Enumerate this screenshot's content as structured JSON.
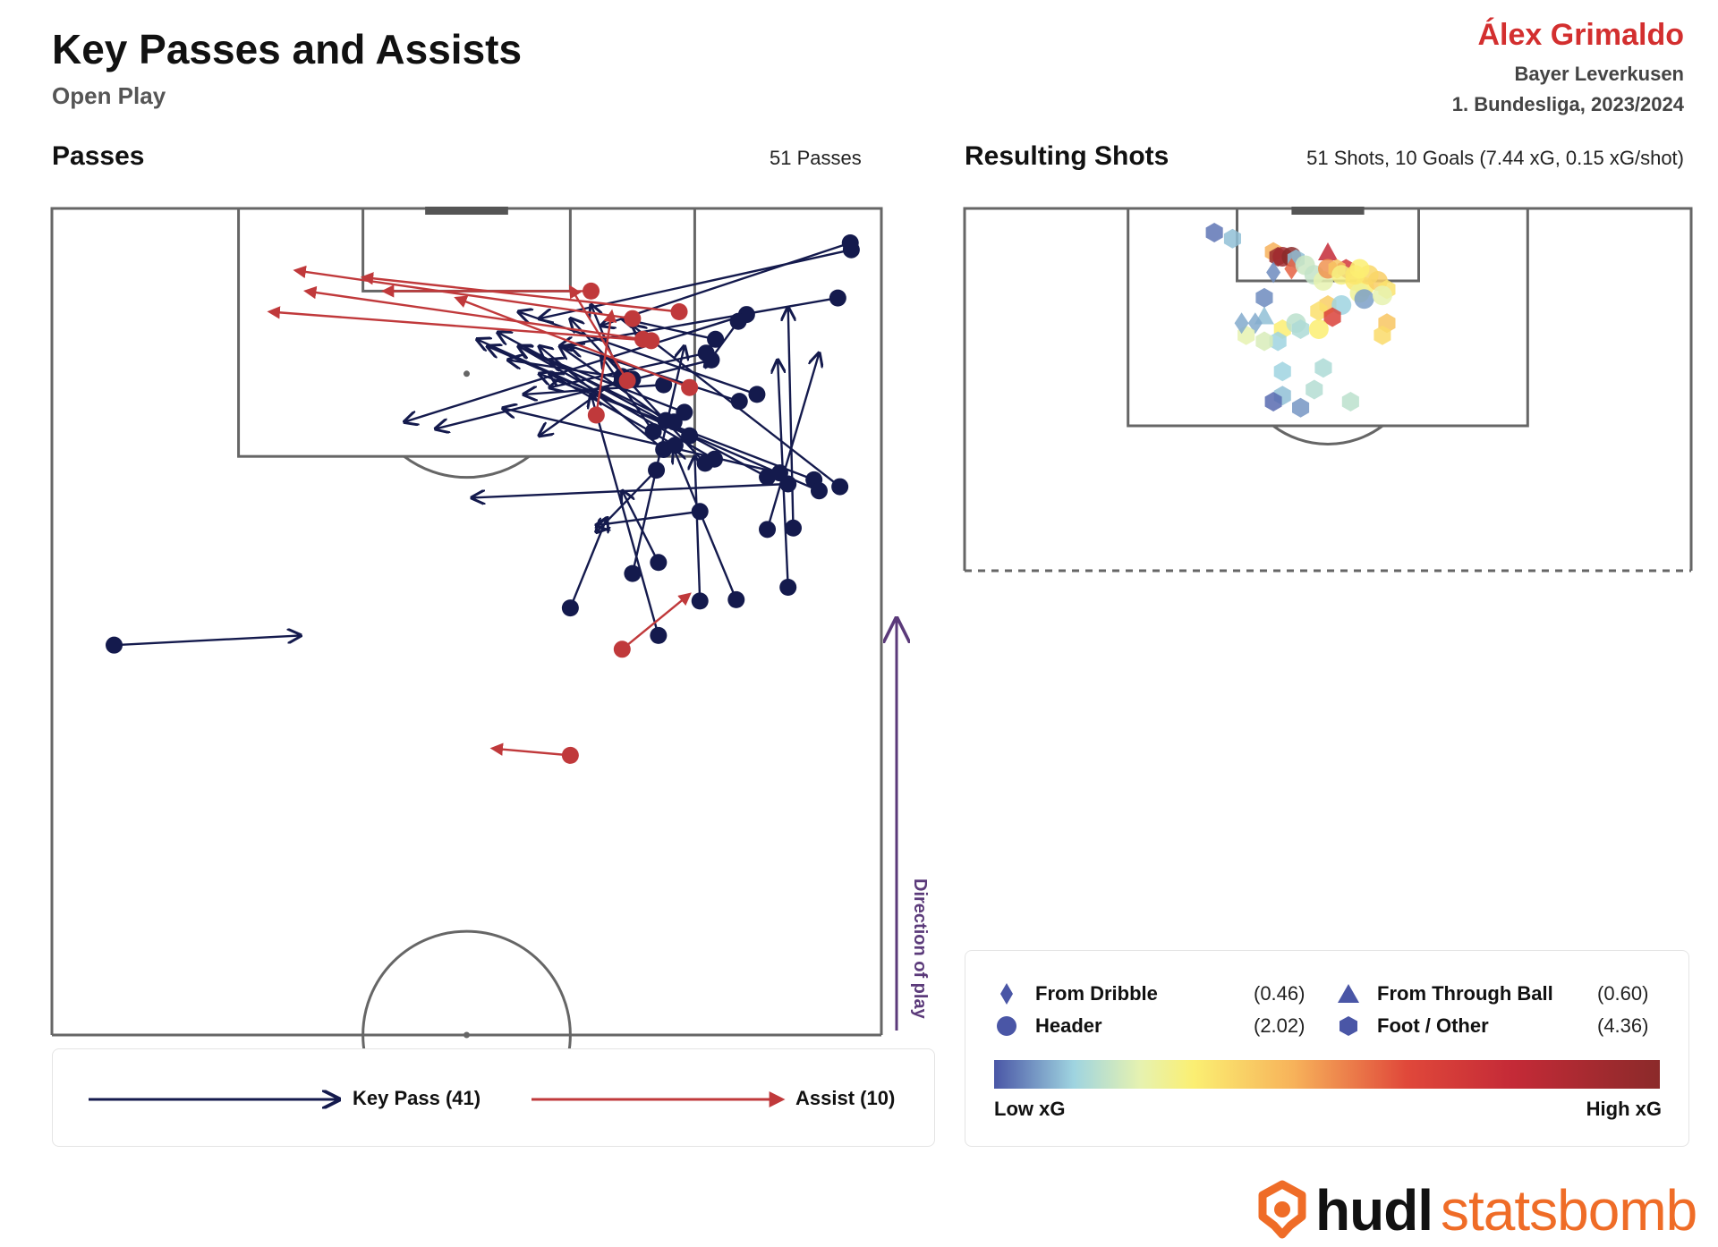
{
  "header": {
    "title": "Key Passes and Assists",
    "subtitle": "Open Play",
    "player": "Álex Grimaldo",
    "team": "Bayer Leverkusen",
    "competition": "1. Bundesliga, 2023/2024"
  },
  "passes_panel": {
    "title": "Passes",
    "count_label": "51 Passes",
    "direction_label": "Direction of play"
  },
  "shots_panel": {
    "title": "Resulting Shots",
    "summary": "51 Shots, 10 Goals (7.44 xG, 0.15 xG/shot)"
  },
  "pass_legend": {
    "key_pass_label": "Key Pass (41)",
    "assist_label": "Assist (10)",
    "key_pass_color": "#141a4d",
    "assist_color": "#c0393b"
  },
  "shot_legend": {
    "items": [
      {
        "label": "From Dribble",
        "value": "(0.46)",
        "shape": "diamond"
      },
      {
        "label": "From Through Ball",
        "value": "(0.60)",
        "shape": "triangle"
      },
      {
        "label": "Header",
        "value": "(2.02)",
        "shape": "circle"
      },
      {
        "label": "Foot / Other",
        "value": "(4.36)",
        "shape": "hexagon"
      }
    ],
    "low_label": "Low xG",
    "high_label": "High xG",
    "shape_color": "#4a56a6"
  },
  "branding": {
    "logo_text_a": "hudl",
    "logo_text_b": "statsbomb",
    "logo_color_a": "#111111",
    "logo_color_b": "#ef6c27"
  },
  "chart_data": [
    {
      "type": "scatter",
      "name": "passes",
      "pitch": {
        "x_range": [
          60,
          120
        ],
        "y_range": [
          0,
          80
        ]
      },
      "series": [
        {
          "name": "Key Pass",
          "color": "#141a4d",
          "passes": [
            [
              117.5,
              77.0,
              111.5,
              53.0
            ],
            [
              117.0,
              77.1,
              112.0,
              47.0
            ],
            [
              113.5,
              75.8,
              110.0,
              49.0
            ],
            [
              112.3,
              67.0,
              104.5,
              34.0
            ],
            [
              111.8,
              66.2,
              108.5,
              63.0
            ],
            [
              110.5,
              64.0,
              112.0,
              55.0
            ],
            [
              109.5,
              63.1,
              107.0,
              48.0
            ],
            [
              109.0,
              63.6,
              104.0,
              37.0
            ],
            [
              107.8,
              55.0,
              103.5,
              47.0
            ],
            [
              107.5,
              55.0,
              113.0,
              52.0
            ],
            [
              107.6,
              56.0,
              109.0,
              44.0
            ],
            [
              107.2,
              59.0,
              106.5,
              45.5
            ],
            [
              106.5,
              68.0,
              112.5,
              45.0
            ],
            [
              106.0,
              66.3,
              110.0,
              50.0
            ],
            [
              105.2,
              61.0,
              109.0,
              48.0
            ],
            [
              104.5,
              60.0,
              110.0,
              45.0
            ],
            [
              104.6,
              59.2,
              110.0,
              49.0
            ],
            [
              103.8,
              58.0,
              109.3,
              53.0
            ],
            [
              103.5,
              61.5,
              110.5,
              41.0
            ],
            [
              102.5,
              59.0,
              110.0,
              47.0
            ],
            [
              102.8,
              60.1,
              108.0,
              48.0
            ],
            [
              101.8,
              63.9,
              110.0,
              45.0
            ],
            [
              101.5,
              63.0,
              112.0,
              50.0
            ],
            [
              101.0,
              58.3,
              96.5,
              52.5
            ],
            [
              100.5,
              69.0,
              111.0,
              43.0
            ],
            [
              100.0,
              71.0,
              99.0,
              40.5
            ],
            [
              100.8,
              70.2,
              105.5,
              43.5
            ],
            [
              100.3,
              73.5,
              108.0,
              47.0
            ],
            [
              99.5,
              74.0,
              110.0,
              42.0
            ],
            [
              99.8,
              76.0,
              111.5,
              56.0
            ],
            [
              98.0,
              62.5,
              97.0,
              52.5
            ],
            [
              96.8,
              71.5,
              112.8,
              71.0
            ],
            [
              96.7,
              69.0,
              109.5,
              74.0
            ],
            [
              94.3,
              58.5,
              99.5,
              55.0
            ],
            [
              93.5,
              56.0,
              110.0,
              61.0
            ],
            [
              92.5,
              71.0,
              109.0,
              70.0
            ],
            [
              91.5,
              62.5,
              102.0,
              62.0
            ],
            [
              91.6,
              66.0,
              102.5,
              60.0
            ],
            [
              91.0,
              50.0,
              97.5,
              53.5
            ],
            [
              89.0,
              58.5,
              106.5,
              52.0
            ],
            [
              88.3,
              6.0,
              89.0,
              24.0
            ]
          ]
        },
        {
          "name": "Assist",
          "color": "#c0393b",
          "passes": [
            [
              114.0,
              52.0,
              114.0,
              32.0
            ],
            [
              112.5,
              60.5,
              115.0,
              30.0
            ],
            [
              112.0,
              56.0,
              115.5,
              23.5
            ],
            [
              110.5,
              57.0,
              114.0,
              24.5
            ],
            [
              110.4,
              57.8,
              112.5,
              21.0
            ],
            [
              107.5,
              55.5,
              114.3,
              50.0
            ],
            [
              107.0,
              61.5,
              113.5,
              39.0
            ],
            [
              105.0,
              52.5,
              112.5,
              54.0
            ],
            [
              88.0,
              55.0,
              92.0,
              61.5
            ],
            [
              80.3,
              50.0,
              80.8,
              42.5
            ]
          ]
        }
      ]
    },
    {
      "type": "scatter",
      "name": "resulting_shots",
      "pitch": {
        "x_range": [
          90,
          120
        ],
        "y_range": [
          0,
          80
        ]
      },
      "shots": [
        [
          118.0,
          27.5,
          "hexagon",
          0.03
        ],
        [
          117.5,
          29.5,
          "hexagon",
          0.1
        ],
        [
          116.4,
          34.0,
          "hexagon",
          0.45
        ],
        [
          116.0,
          34.5,
          "hexagon",
          0.95
        ],
        [
          116.0,
          35.0,
          "circle",
          0.92
        ],
        [
          116.0,
          36.0,
          "circle",
          1.0
        ],
        [
          116.3,
          40.0,
          "triangle",
          0.78
        ],
        [
          115.0,
          42.0,
          "hexagon",
          0.7
        ],
        [
          115.8,
          36.5,
          "hexagon",
          0.1
        ],
        [
          115.0,
          36.0,
          "diamond",
          0.58
        ],
        [
          115.3,
          37.5,
          "circle",
          0.18
        ],
        [
          114.5,
          38.5,
          "circle",
          0.17
        ],
        [
          114.0,
          39.5,
          "circle",
          0.22
        ],
        [
          115.0,
          40.0,
          "circle",
          0.5
        ],
        [
          115.0,
          41.0,
          "hexagon",
          0.4
        ],
        [
          114.5,
          41.5,
          "circle",
          0.28
        ],
        [
          114.0,
          43.0,
          "circle",
          0.32
        ],
        [
          113.5,
          44.0,
          "circle",
          0.3
        ],
        [
          114.0,
          45.5,
          "circle",
          0.38
        ],
        [
          114.5,
          44.5,
          "circle",
          0.36
        ],
        [
          113.3,
          46.5,
          "hexagon",
          0.33
        ],
        [
          113.0,
          43.5,
          "circle",
          0.25
        ],
        [
          112.5,
          44.0,
          "circle",
          0.07
        ],
        [
          114.5,
          43.0,
          "circle",
          0.32
        ],
        [
          115.0,
          43.5,
          "circle",
          0.3
        ],
        [
          112.0,
          40.0,
          "hexagon",
          0.38
        ],
        [
          111.5,
          39.0,
          "hexagon",
          0.34
        ],
        [
          112.0,
          41.5,
          "circle",
          0.12
        ],
        [
          111.0,
          40.5,
          "hexagon",
          0.65
        ],
        [
          110.5,
          46.5,
          "hexagon",
          0.4
        ],
        [
          109.5,
          46.0,
          "hexagon",
          0.35
        ],
        [
          112.8,
          46.0,
          "circle",
          0.22
        ],
        [
          110.0,
          35.0,
          "hexagon",
          0.3
        ],
        [
          110.5,
          36.5,
          "circle",
          0.16
        ],
        [
          110.0,
          37.0,
          "hexagon",
          0.14
        ],
        [
          110.0,
          39.0,
          "circle",
          0.3
        ],
        [
          114.7,
          34.0,
          "diamond",
          0.05
        ],
        [
          111.0,
          33.0,
          "triangle",
          0.1
        ],
        [
          110.5,
          32.0,
          "diamond",
          0.08
        ],
        [
          112.6,
          33.0,
          "hexagon",
          0.05
        ],
        [
          109.0,
          34.5,
          "hexagon",
          0.12
        ],
        [
          109.0,
          33.0,
          "hexagon",
          0.2
        ],
        [
          109.5,
          31.0,
          "hexagon",
          0.22
        ],
        [
          110.5,
          30.5,
          "diamond",
          0.08
        ],
        [
          106.5,
          35.0,
          "hexagon",
          0.12
        ],
        [
          104.5,
          35.0,
          "hexagon",
          0.1
        ],
        [
          103.5,
          37.0,
          "hexagon",
          0.06
        ],
        [
          105.0,
          38.5,
          "hexagon",
          0.15
        ],
        [
          106.8,
          39.5,
          "hexagon",
          0.14
        ],
        [
          104.0,
          42.5,
          "hexagon",
          0.16
        ],
        [
          104.0,
          34.0,
          "hexagon",
          0.02
        ]
      ]
    }
  ]
}
